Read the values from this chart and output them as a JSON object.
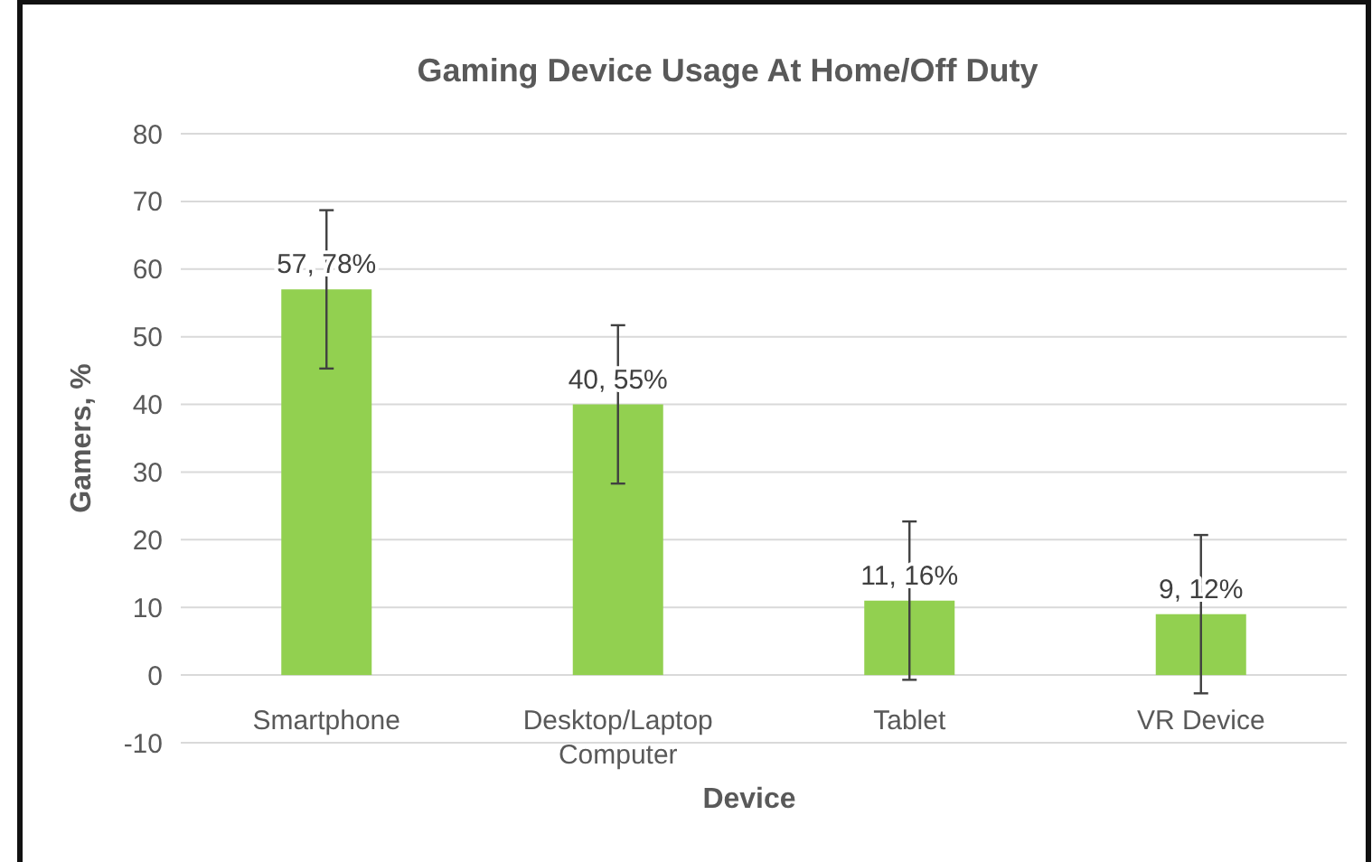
{
  "chart_data": {
    "type": "bar",
    "title": "Gaming Device Usage At Home/Off Duty",
    "xlabel": "Device",
    "ylabel": "Gamers, %",
    "categories": [
      "Smartphone",
      "Desktop/Laptop Computer",
      "Tablet",
      "VR Device"
    ],
    "values": [
      57,
      40,
      11,
      9
    ],
    "color": "#92d050",
    "errors": [
      11.7,
      11.7,
      11.7,
      11.7
    ],
    "value_labels": [
      "57, 78%",
      "40, 55%",
      "11, 16%",
      "9, 12%"
    ],
    "ylim": [
      -10,
      80
    ],
    "yticks": [
      -10,
      0,
      10,
      20,
      30,
      40,
      50,
      60,
      70,
      80
    ],
    "grid": "y"
  }
}
